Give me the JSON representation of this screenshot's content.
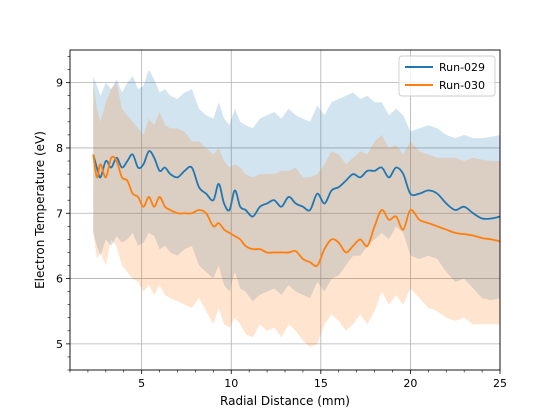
{
  "chart_data": {
    "type": "line",
    "title": "",
    "xlabel": "Radial Distance (mm)",
    "ylabel": "Electron Temperature (eV)",
    "xlim": [
      1.0,
      25.0
    ],
    "ylim": [
      4.6,
      9.5
    ],
    "xticks": [
      5,
      10,
      15,
      20,
      25
    ],
    "yticks": [
      5,
      6,
      7,
      8,
      9
    ],
    "grid": true,
    "legend": "top-right",
    "series": [
      {
        "name": "Run-029",
        "color": "#1f77b4",
        "x": [
          2.3,
          2.5,
          2.7,
          3.0,
          3.3,
          3.6,
          3.9,
          4.2,
          4.5,
          4.8,
          5.1,
          5.4,
          5.7,
          6.0,
          6.3,
          6.6,
          7.0,
          7.4,
          7.8,
          8.2,
          8.6,
          9.0,
          9.3,
          9.6,
          9.9,
          10.2,
          10.5,
          10.8,
          11.2,
          11.6,
          12.0,
          12.4,
          12.8,
          13.2,
          13.6,
          14.0,
          14.4,
          14.8,
          15.2,
          15.6,
          16.0,
          16.4,
          16.8,
          17.2,
          17.6,
          18.0,
          18.4,
          18.8,
          19.2,
          19.6,
          20.0,
          20.5,
          21.0,
          21.5,
          22.0,
          22.5,
          23.0,
          23.5,
          24.0,
          24.5,
          25.0
        ],
        "y": [
          7.9,
          7.7,
          7.55,
          7.8,
          7.7,
          7.85,
          7.7,
          7.8,
          7.9,
          7.7,
          7.75,
          7.95,
          7.85,
          7.65,
          7.7,
          7.6,
          7.55,
          7.65,
          7.7,
          7.4,
          7.3,
          7.2,
          7.45,
          7.15,
          7.05,
          7.35,
          7.1,
          7.05,
          6.95,
          7.1,
          7.15,
          7.2,
          7.1,
          7.25,
          7.15,
          7.1,
          7.05,
          7.3,
          7.15,
          7.35,
          7.4,
          7.5,
          7.6,
          7.55,
          7.65,
          7.65,
          7.7,
          7.55,
          7.7,
          7.6,
          7.3,
          7.3,
          7.35,
          7.3,
          7.15,
          7.05,
          7.1,
          7.0,
          6.92,
          6.92,
          6.95
        ],
        "upper": [
          9.1,
          8.95,
          8.8,
          9.0,
          8.9,
          9.05,
          8.85,
          9.0,
          9.1,
          8.9,
          8.95,
          9.2,
          9.05,
          8.85,
          8.9,
          8.8,
          8.75,
          8.85,
          8.9,
          8.6,
          8.5,
          8.45,
          8.7,
          8.45,
          8.35,
          8.6,
          8.4,
          8.35,
          8.3,
          8.45,
          8.5,
          8.55,
          8.45,
          8.6,
          8.5,
          8.45,
          8.4,
          8.65,
          8.5,
          8.7,
          8.75,
          8.8,
          8.85,
          8.75,
          8.8,
          8.7,
          8.7,
          8.5,
          8.6,
          8.5,
          8.25,
          8.3,
          8.35,
          8.3,
          8.2,
          8.15,
          8.2,
          8.15,
          8.15,
          8.17,
          8.2
        ],
        "lower": [
          6.7,
          6.5,
          6.35,
          6.6,
          6.5,
          6.65,
          6.55,
          6.6,
          6.7,
          6.5,
          6.55,
          6.7,
          6.65,
          6.45,
          6.5,
          6.4,
          6.35,
          6.45,
          6.5,
          6.2,
          6.1,
          6.0,
          6.2,
          5.9,
          5.8,
          6.1,
          5.85,
          5.8,
          5.65,
          5.75,
          5.8,
          5.85,
          5.75,
          5.9,
          5.8,
          5.75,
          5.7,
          5.95,
          5.8,
          6.0,
          6.05,
          6.2,
          6.35,
          6.35,
          6.5,
          6.6,
          6.7,
          6.6,
          6.8,
          6.7,
          6.35,
          6.3,
          6.35,
          6.3,
          6.1,
          5.95,
          6.0,
          5.85,
          5.7,
          5.67,
          5.7
        ]
      },
      {
        "name": "Run-030",
        "color": "#ff7f0e",
        "x": [
          2.3,
          2.5,
          2.7,
          3.0,
          3.3,
          3.6,
          3.9,
          4.2,
          4.5,
          4.8,
          5.1,
          5.4,
          5.7,
          6.0,
          6.3,
          6.6,
          7.0,
          7.4,
          7.8,
          8.2,
          8.6,
          9.0,
          9.3,
          9.6,
          9.9,
          10.2,
          10.5,
          10.8,
          11.2,
          11.6,
          12.0,
          12.4,
          12.8,
          13.2,
          13.6,
          14.0,
          14.4,
          14.8,
          15.2,
          15.6,
          16.0,
          16.4,
          16.8,
          17.2,
          17.6,
          18.0,
          18.4,
          18.8,
          19.2,
          19.6,
          20.0,
          20.5,
          21.0,
          21.5,
          22.0,
          22.5,
          23.0,
          23.5,
          24.0,
          24.5,
          25.0
        ],
        "y": [
          7.9,
          7.55,
          7.75,
          7.55,
          7.85,
          7.8,
          7.55,
          7.5,
          7.3,
          7.25,
          7.1,
          7.25,
          7.1,
          7.25,
          7.1,
          7.05,
          7.0,
          7.0,
          7.0,
          7.05,
          7.0,
          6.8,
          6.85,
          6.75,
          6.7,
          6.65,
          6.6,
          6.5,
          6.45,
          6.45,
          6.4,
          6.4,
          6.4,
          6.4,
          6.42,
          6.3,
          6.25,
          6.2,
          6.45,
          6.6,
          6.55,
          6.4,
          6.5,
          6.6,
          6.5,
          6.8,
          7.05,
          6.9,
          6.95,
          6.75,
          7.05,
          6.9,
          6.85,
          6.8,
          6.75,
          6.7,
          6.68,
          6.66,
          6.62,
          6.6,
          6.57
        ],
        "upper": [
          9.0,
          8.6,
          8.4,
          8.7,
          8.9,
          9.0,
          8.6,
          8.5,
          8.4,
          8.3,
          8.2,
          8.45,
          8.35,
          8.55,
          8.35,
          8.3,
          8.3,
          8.25,
          8.1,
          8.1,
          8.0,
          7.9,
          8.0,
          7.8,
          7.7,
          7.75,
          7.7,
          7.6,
          7.55,
          7.6,
          7.6,
          7.6,
          7.65,
          7.65,
          7.7,
          7.55,
          7.55,
          7.6,
          7.75,
          7.95,
          7.9,
          7.75,
          7.85,
          7.95,
          7.9,
          8.1,
          8.2,
          8.0,
          8.05,
          7.9,
          8.1,
          7.95,
          7.9,
          7.85,
          7.85,
          7.85,
          7.8,
          7.85,
          7.82,
          7.8,
          7.8
        ],
        "lower": [
          6.7,
          6.3,
          6.4,
          6.2,
          6.6,
          6.5,
          6.2,
          6.1,
          6.0,
          5.95,
          5.8,
          5.9,
          5.75,
          5.9,
          5.75,
          5.7,
          5.65,
          5.6,
          5.55,
          5.7,
          5.5,
          5.3,
          5.55,
          5.3,
          5.25,
          5.4,
          5.3,
          5.15,
          5.1,
          5.3,
          5.2,
          5.25,
          5.1,
          5.3,
          5.2,
          5.05,
          4.95,
          5.0,
          5.3,
          5.45,
          5.35,
          5.2,
          5.3,
          5.45,
          5.3,
          5.5,
          5.8,
          5.6,
          5.75,
          5.6,
          5.85,
          5.7,
          5.55,
          5.5,
          5.4,
          5.35,
          5.4,
          5.3,
          5.3,
          5.3,
          5.3
        ]
      }
    ]
  }
}
